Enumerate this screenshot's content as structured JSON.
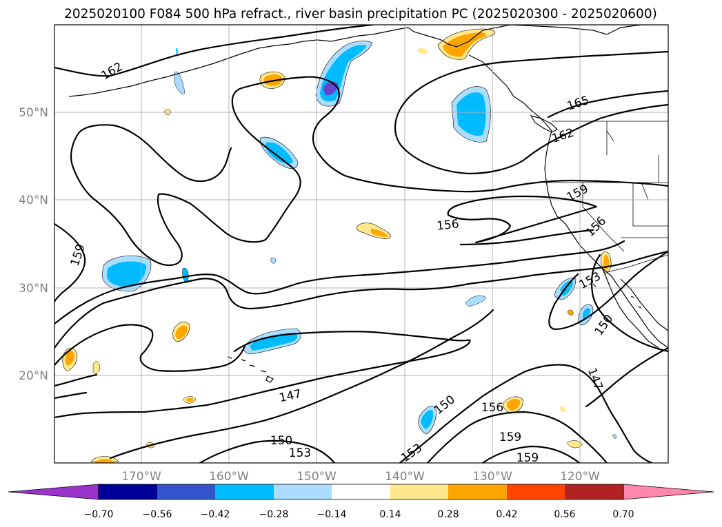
{
  "title": "2025020100 F084 500 hPa refract., river basin precipitation PC (2025020300 - 2025020600)",
  "lat_labels": [
    "50°N",
    "40°N",
    "30°N",
    "20°N"
  ],
  "lon_labels": [
    "170°W",
    "160°W",
    "150°W",
    "140°W",
    "130°W",
    "120°W"
  ],
  "contour_labels": {
    "c162a": "162",
    "c165": "165",
    "c162b": "162",
    "c159a": "159",
    "c156a": "156",
    "c156b": "156",
    "c153a": "153",
    "c150a": "150",
    "c147a": "147",
    "c147b": "147",
    "c150b": "150",
    "c153b": "153",
    "c150c": "150",
    "c156c": "156",
    "c159b": "159",
    "c159c": "159",
    "c153c": "153",
    "c159d": "159"
  },
  "colorbar": {
    "tick_labels": [
      "−0.70",
      "−0.56",
      "−0.42",
      "−0.28",
      "−0.14",
      "0.14",
      "0.28",
      "0.42",
      "0.56",
      "0.70"
    ],
    "colors": [
      "#9933cc",
      "#000099",
      "#3355cc",
      "#00bbff",
      "#aaddff",
      "#ffffff",
      "#ffe88c",
      "#ffa500",
      "#ff4400",
      "#b22222",
      "#ff88aa"
    ]
  },
  "fill_colors": {
    "light_blue": "#aaddff",
    "blue": "#00bbff",
    "mid_blue": "#3355cc",
    "purple": "#6644cc",
    "light_orange": "#ffe88c",
    "orange": "#ffa500"
  }
}
